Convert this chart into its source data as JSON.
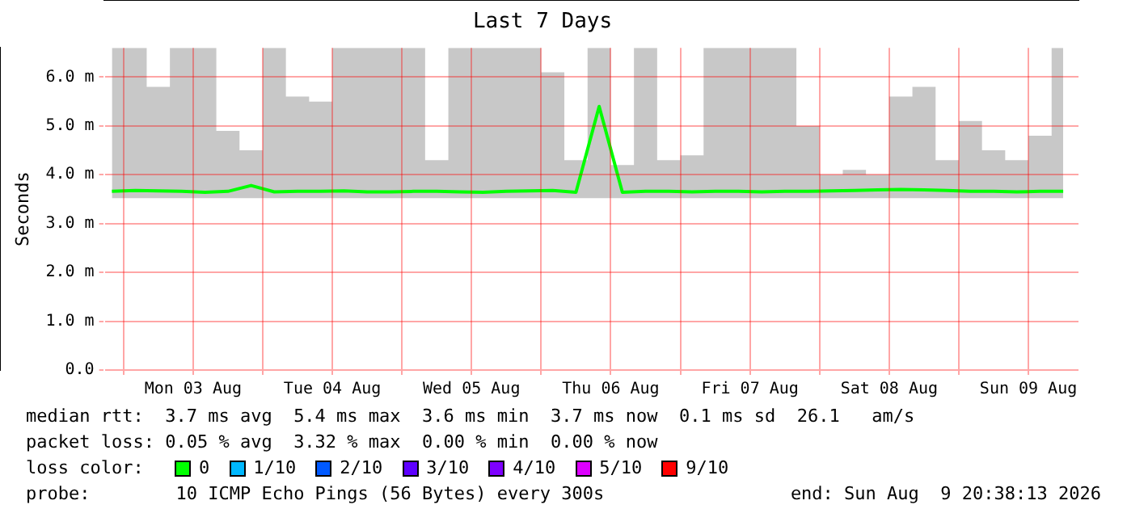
{
  "chart_data": {
    "type": "line",
    "title": "Last 7 Days",
    "ylabel": "Seconds",
    "x": [
      "2026-08-02T22:00",
      "2026-08-03T02:00",
      "2026-08-03T06:00",
      "2026-08-03T10:00",
      "2026-08-03T14:00",
      "2026-08-03T18:00",
      "2026-08-03T22:00",
      "2026-08-04T02:00",
      "2026-08-04T06:00",
      "2026-08-04T10:00",
      "2026-08-04T14:00",
      "2026-08-04T18:00",
      "2026-08-04T22:00",
      "2026-08-05T02:00",
      "2026-08-05T06:00",
      "2026-08-05T10:00",
      "2026-08-05T14:00",
      "2026-08-05T18:00",
      "2026-08-05T22:00",
      "2026-08-06T02:00",
      "2026-08-06T06:00",
      "2026-08-06T10:00",
      "2026-08-06T14:00",
      "2026-08-06T18:00",
      "2026-08-06T22:00",
      "2026-08-07T02:00",
      "2026-08-07T06:00",
      "2026-08-07T10:00",
      "2026-08-07T14:00",
      "2026-08-07T18:00",
      "2026-08-07T22:00",
      "2026-08-08T02:00",
      "2026-08-08T06:00",
      "2026-08-08T10:00",
      "2026-08-08T14:00",
      "2026-08-08T18:00",
      "2026-08-08T22:00",
      "2026-08-09T02:00",
      "2026-08-09T06:00",
      "2026-08-09T10:00",
      "2026-08-09T14:00",
      "2026-08-09T18:00"
    ],
    "series": [
      {
        "color": "#00ff00",
        "values": [
          3.66,
          3.68,
          3.67,
          3.66,
          3.64,
          3.66,
          3.78,
          3.65,
          3.66,
          3.66,
          3.67,
          3.65,
          3.65,
          3.66,
          3.66,
          3.65,
          3.64,
          3.66,
          3.67,
          3.68,
          3.64,
          5.4,
          3.64,
          3.66,
          3.66,
          3.65,
          3.66,
          3.66,
          3.65,
          3.66,
          3.66,
          3.67,
          3.68,
          3.69,
          3.7,
          3.69,
          3.68,
          3.66,
          3.66,
          3.65,
          3.66,
          3.66
        ],
        "lower": [
          3.52,
          3.52,
          3.52,
          3.52,
          3.52,
          3.52,
          3.52,
          3.52,
          3.52,
          3.52,
          3.52,
          3.52,
          3.52,
          3.52,
          3.52,
          3.52,
          3.52,
          3.52,
          3.52,
          3.52,
          3.52,
          3.52,
          3.52,
          3.52,
          3.52,
          3.52,
          3.52,
          3.52,
          3.52,
          3.52,
          3.52,
          3.52,
          3.52,
          3.52,
          3.52,
          3.52,
          3.52,
          3.52,
          3.52,
          3.52,
          3.52,
          3.52
        ],
        "upper": [
          6.6,
          6.6,
          5.8,
          6.6,
          6.6,
          4.9,
          4.5,
          6.6,
          5.6,
          5.5,
          6.6,
          6.6,
          6.6,
          6.6,
          4.3,
          6.6,
          6.6,
          6.6,
          6.6,
          6.1,
          4.3,
          6.6,
          4.2,
          6.6,
          4.3,
          4.4,
          6.6,
          6.6,
          6.6,
          6.6,
          5.0,
          4.0,
          4.1,
          4.0,
          5.6,
          5.8,
          4.3,
          5.1,
          4.5,
          4.3,
          4.8,
          6.6
        ]
      }
    ],
    "xlim": [
      "2026-08-02T20:38",
      "2026-08-09T20:38"
    ],
    "xticks": [
      {
        "value": "2026-08-03T00:00",
        "label": null
      },
      {
        "value": "2026-08-03T12:00",
        "label": "Mon 03 Aug"
      },
      {
        "value": "2026-08-04T00:00",
        "label": null
      },
      {
        "value": "2026-08-04T12:00",
        "label": "Tue 04 Aug"
      },
      {
        "value": "2026-08-05T00:00",
        "label": null
      },
      {
        "value": "2026-08-05T12:00",
        "label": "Wed 05 Aug"
      },
      {
        "value": "2026-08-06T00:00",
        "label": null
      },
      {
        "value": "2026-08-06T12:00",
        "label": "Thu 06 Aug"
      },
      {
        "value": "2026-08-07T00:00",
        "label": null
      },
      {
        "value": "2026-08-07T12:00",
        "label": "Fri 07 Aug"
      },
      {
        "value": "2026-08-08T00:00",
        "label": null
      },
      {
        "value": "2026-08-08T12:00",
        "label": "Sat 08 Aug"
      },
      {
        "value": "2026-08-09T00:00",
        "label": null
      },
      {
        "value": "2026-08-09T12:00",
        "label": "Sun 09 Aug"
      }
    ],
    "ylim": [
      0,
      6.6
    ],
    "yticks": [
      {
        "value": 0,
        "label": "0.0"
      },
      {
        "value": 1,
        "label": "1.0 m"
      },
      {
        "value": 2,
        "label": "2.0 m"
      },
      {
        "value": 3,
        "label": "3.0 m"
      },
      {
        "value": 4,
        "label": "4.0 m"
      },
      {
        "value": 5,
        "label": "5.0 m"
      },
      {
        "value": 6,
        "label": "6.0 m"
      }
    ],
    "grid": true,
    "annotations": [
      "median rtt:  3.7 ms avg  5.4 ms max  3.6 ms min  3.7 ms now  0.1 ms sd  26.1   am/s",
      "packet loss: 0.05 % avg  3.32 % max  0.00 % min  0.00 % now",
      "loss color:",
      "0",
      "1/10",
      "2/10",
      "3/10",
      "4/10",
      "5/10",
      "9/10",
      "probe:        10 ICMP Echo Pings (56 Bytes) every 300s",
      "end: Sun Aug  9 20:38:13 2026"
    ]
  }
}
